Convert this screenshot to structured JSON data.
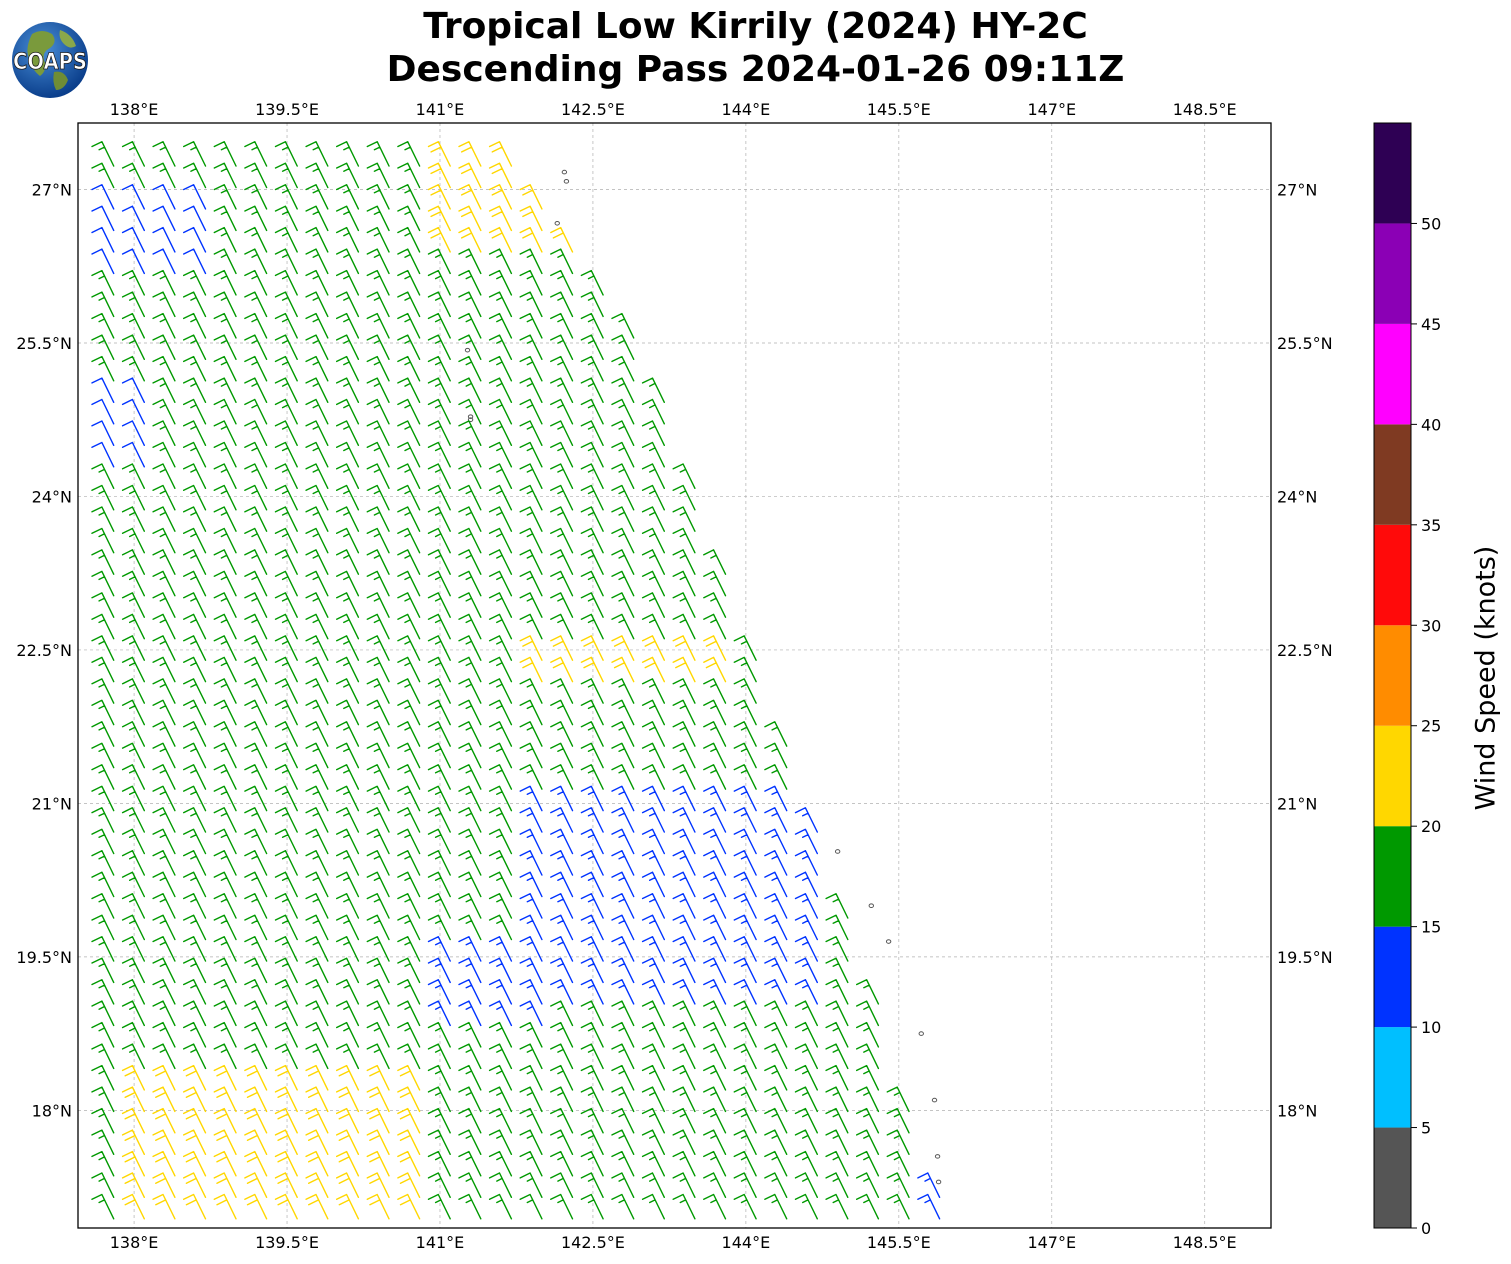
{
  "title": {
    "line1": "Tropical Low Kirrily (2024) HY-2C",
    "line2": "Descending Pass 2024-01-26 09:11Z"
  },
  "logo": {
    "text": "COAPS",
    "icon": "globe-logo-icon"
  },
  "map": {
    "lon_range": [
      137.45,
      149.15
    ],
    "lat_range": [
      16.85,
      27.65
    ],
    "lon_ticks": [
      "138°E",
      "139.5°E",
      "141°E",
      "142.5°E",
      "144°E",
      "145.5°E",
      "147°E",
      "148.5°E"
    ],
    "lon_tick_values": [
      138,
      139.5,
      141,
      142.5,
      144,
      145.5,
      147,
      148.5
    ],
    "lat_ticks": [
      "27°N",
      "25.5°N",
      "24°N",
      "22.5°N",
      "21°N",
      "19.5°N",
      "18°N"
    ],
    "lat_tick_values": [
      27,
      25.5,
      24,
      22.5,
      21,
      19.5,
      18
    ],
    "gridlines": true,
    "islands": [
      {
        "lon": 142.22,
        "lat": 27.17
      },
      {
        "lon": 142.24,
        "lat": 27.08
      },
      {
        "lon": 142.15,
        "lat": 26.67
      },
      {
        "lon": 141.27,
        "lat": 25.43
      },
      {
        "lon": 141.3,
        "lat": 24.78
      },
      {
        "lon": 141.3,
        "lat": 24.75
      },
      {
        "lon": 144.9,
        "lat": 20.53
      },
      {
        "lon": 145.23,
        "lat": 20.0
      },
      {
        "lon": 145.4,
        "lat": 19.65
      },
      {
        "lon": 145.72,
        "lat": 18.75
      },
      {
        "lon": 145.85,
        "lat": 18.1
      },
      {
        "lon": 145.88,
        "lat": 17.55
      },
      {
        "lon": 145.89,
        "lat": 17.3
      }
    ]
  },
  "chart_data": {
    "type": "wind-barbs",
    "swath": {
      "west_edge_lon": 137.45,
      "east_edge": [
        [
          141.6,
          27.65
        ],
        [
          143.25,
          25.0
        ],
        [
          144.65,
          21.0
        ],
        [
          146.0,
          17.0
        ]
      ],
      "south_lat": 16.85
    },
    "speed_bins": [
      {
        "min": 0,
        "max": 5,
        "color": "#555555"
      },
      {
        "min": 5,
        "max": 10,
        "color": "#00bfff"
      },
      {
        "min": 10,
        "max": 15,
        "color": "#0033ff"
      },
      {
        "min": 15,
        "max": 20,
        "color": "#009900"
      },
      {
        "min": 20,
        "max": 25,
        "color": "#ffd700"
      },
      {
        "min": 25,
        "max": 30,
        "color": "#ff8c00"
      },
      {
        "min": 30,
        "max": 35,
        "color": "#ff0a0a"
      },
      {
        "min": 35,
        "max": 40,
        "color": "#7f3a22"
      },
      {
        "min": 40,
        "max": 45,
        "color": "#ff00ff"
      },
      {
        "min": 45,
        "max": 50,
        "color": "#8b00b5"
      },
      {
        "min": 50,
        "max": 55,
        "color": "#2e0054"
      }
    ],
    "prevailing_speed_kt": 17,
    "prevailing_direction": "from east-northeast",
    "regions": [
      {
        "name": "weaker winds north-west",
        "lon": [
          137.45,
          139.0
        ],
        "lat": [
          26.0,
          27.0
        ],
        "speed_kt": 12
      },
      {
        "name": "weaker winds west",
        "lon": [
          137.45,
          138.2
        ],
        "lat": [
          24.2,
          25.0
        ],
        "speed_kt": 12
      },
      {
        "name": "stronger winds north",
        "lon": [
          141.0,
          142.6
        ],
        "lat": [
          26.3,
          27.65
        ],
        "speed_kt": 22
      },
      {
        "name": "stronger winds centre",
        "lon": [
          142.0,
          144.0
        ],
        "lat": [
          22.0,
          22.6
        ],
        "speed_kt": 22
      },
      {
        "name": "weaker winds south-east",
        "lon": [
          142.0,
          145.0
        ],
        "lat": [
          19.0,
          21.0
        ],
        "speed_kt": 13
      },
      {
        "name": "weaker winds south",
        "lon": [
          141.0,
          142.3
        ],
        "lat": [
          18.7,
          19.5
        ],
        "speed_kt": 13
      },
      {
        "name": "stronger winds south-west",
        "lon": [
          138.0,
          141.0
        ],
        "lat": [
          16.85,
          18.3
        ],
        "speed_kt": 22
      },
      {
        "name": "weaker winds south-east corner",
        "lon": [
          145.7,
          146.2
        ],
        "lat": [
          16.85,
          17.4
        ],
        "speed_kt": 13
      }
    ]
  },
  "colorbar": {
    "ticks": [
      "0",
      "5",
      "10",
      "15",
      "20",
      "25",
      "30",
      "35",
      "40",
      "45",
      "50"
    ],
    "max": 55,
    "label": "Wind Speed (knots)"
  }
}
